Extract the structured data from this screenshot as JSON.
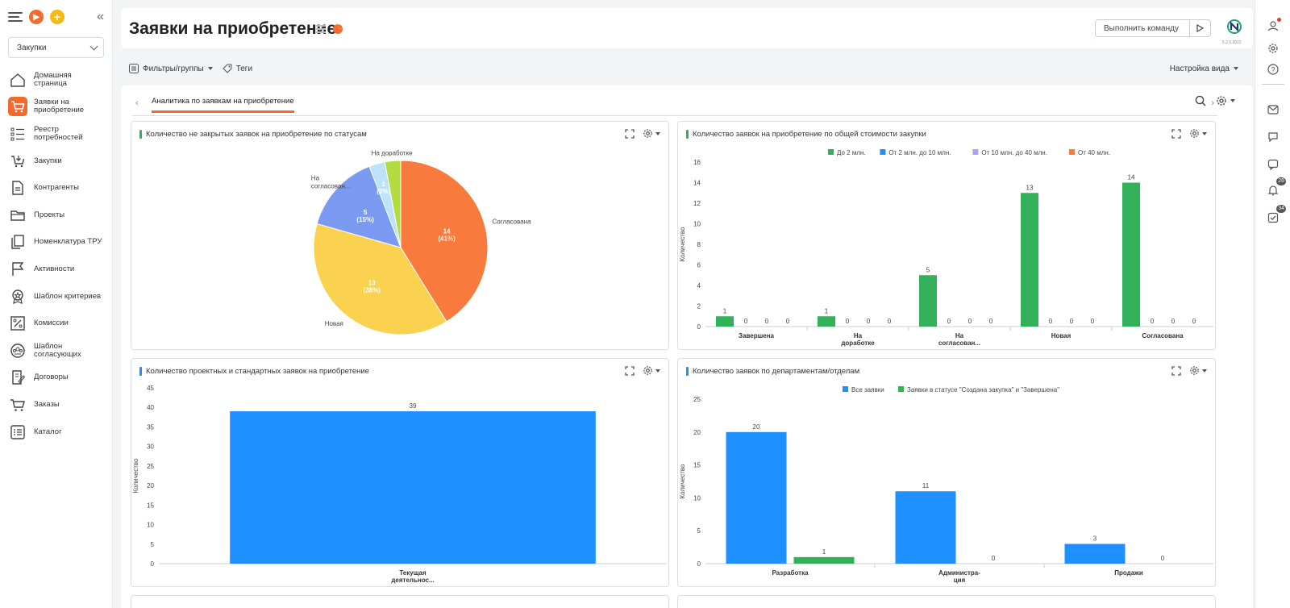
{
  "sidebar": {
    "module_select": "Закупки",
    "items": [
      {
        "label": "Домашняя страница",
        "line1": "Домашняя",
        "line2": "страница",
        "icon": "home-icon",
        "active": false
      },
      {
        "label": "Заявки на приобретение",
        "line1": "Заявки на",
        "line2": "приобретение",
        "icon": "cart-request-icon",
        "active": true
      },
      {
        "label": "Реестр потребностей",
        "line1": "Реестр",
        "line2": "потребностей",
        "icon": "list-icon",
        "active": false
      },
      {
        "label": "Закупки",
        "line1": "Закупки",
        "line2": "",
        "icon": "cart-down-icon",
        "active": false
      },
      {
        "label": "Контрагенты",
        "line1": "Контрагенты",
        "line2": "",
        "icon": "document-icon",
        "active": false
      },
      {
        "label": "Проекты",
        "line1": "Проекты",
        "line2": "",
        "icon": "folder-icon",
        "active": false
      },
      {
        "label": "Номенклатура ТРУ",
        "line1": "Номенклатура ТРУ",
        "line2": "",
        "icon": "copy-icon",
        "active": false
      },
      {
        "label": "Активности",
        "line1": "Активности",
        "line2": "",
        "icon": "flag-icon",
        "active": false
      },
      {
        "label": "Шаблон критериев",
        "line1": "Шаблон критериев",
        "line2": "",
        "icon": "star-badge-icon",
        "active": false
      },
      {
        "label": "Комиссии",
        "line1": "Комиссии",
        "line2": "",
        "icon": "percent-icon",
        "active": false
      },
      {
        "label": "Шаблон согласующих",
        "line1": "Шаблон",
        "line2": "согласующих",
        "icon": "group-icon",
        "active": false
      },
      {
        "label": "Договоры",
        "line1": "Договоры",
        "line2": "",
        "icon": "contract-icon",
        "active": false
      },
      {
        "label": "Заказы",
        "line1": "Заказы",
        "line2": "",
        "icon": "cart-icon",
        "active": false
      },
      {
        "label": "Каталог",
        "line1": "Каталог",
        "line2": "",
        "icon": "catalog-icon",
        "active": false
      }
    ]
  },
  "header": {
    "title": "Заявки на приобретение",
    "command_placeholder": "Выполнить команду",
    "version": "5.2.0.2022"
  },
  "toolbar": {
    "filters_label": "Фильтры/группы",
    "tags_label": "Теги",
    "view_settings_label": "Настройка вида"
  },
  "tabs": {
    "active_tab": "Аналитика по заявкам на приобретение"
  },
  "rail": {
    "notifications_count": "26",
    "tasks_count": "34"
  },
  "colors": {
    "accent": "#f26a2e",
    "green": "#33b15a",
    "blue": "#1e90ff",
    "lavender": "#a9a4ef",
    "orange": "#f87a3d"
  },
  "chart_data": [
    {
      "type": "pie",
      "title": "Количество не закрытых заявок на приобретение по статусам",
      "slices": [
        {
          "label": "Согласована",
          "value": 14,
          "value_label": "14",
          "pct_label": "(41%)",
          "color": "#f87a3d"
        },
        {
          "label": "Новая",
          "value": 13,
          "value_label": "13",
          "pct_label": "(38%)",
          "color": "#fbd150"
        },
        {
          "label": "На согласован...",
          "value": 5,
          "value_label": "5",
          "pct_label": "(15%)",
          "color": "#7b9bf2"
        },
        {
          "label": "",
          "value": 1,
          "value_label": "1",
          "pct_label": "(3%)",
          "color": "#bde3fb"
        },
        {
          "label": "На доработке",
          "value": 1,
          "value_label": "",
          "pct_label": "",
          "color": "#b3dc40"
        }
      ]
    },
    {
      "type": "bar",
      "title": "Количество заявок на приобретение по общей стоимости закупки",
      "ylabel": "Количество",
      "ylim": [
        0,
        16
      ],
      "yticks": [
        "0",
        "2",
        "4",
        "6",
        "8",
        "10",
        "12",
        "14",
        "16"
      ],
      "legend_position": "top",
      "categories": [
        "Завершена",
        "На доработке",
        "На согласован...",
        "Новая",
        "Согласована"
      ],
      "series": [
        {
          "name": "До 2 млн.",
          "color": "#33b15a",
          "values": [
            1,
            1,
            5,
            13,
            14
          ]
        },
        {
          "name": "От 2 млн. до 10 млн.",
          "color": "#1e90ff",
          "values": [
            0,
            0,
            0,
            0,
            0
          ]
        },
        {
          "name": "От 10 млн. до 40 млн.",
          "color": "#a9a4ef",
          "values": [
            0,
            0,
            0,
            0,
            0
          ]
        },
        {
          "name": "От 40 млн.",
          "color": "#f87a3d",
          "values": [
            0,
            0,
            0,
            0,
            0
          ]
        }
      ]
    },
    {
      "type": "bar",
      "title": "Количество проектных и стандартных заявок на приобретение",
      "ylabel": "Количество",
      "ylim": [
        0,
        45
      ],
      "yticks": [
        "0",
        "5",
        "10",
        "15",
        "20",
        "25",
        "30",
        "35",
        "40",
        "45"
      ],
      "categories": [
        "Текущая деятельнос..."
      ],
      "series": [
        {
          "name": "",
          "color": "#1e90ff",
          "values": [
            39
          ]
        }
      ]
    },
    {
      "type": "bar",
      "title": "Количество заявок по департаментам/отделам",
      "ylabel": "Количество",
      "ylim": [
        0,
        25
      ],
      "yticks": [
        "0",
        "5",
        "10",
        "15",
        "20",
        "25"
      ],
      "legend_position": "top",
      "categories": [
        "Разработка",
        "Администра-ция",
        "Продажи"
      ],
      "series": [
        {
          "name": "Все заявки",
          "color": "#1e90ff",
          "values": [
            20,
            11,
            3
          ]
        },
        {
          "name": "Заявки в статусе \"Создана закупка\" и \"Завершена\"",
          "color": "#33b15a",
          "values": [
            1,
            0,
            0
          ]
        }
      ]
    }
  ]
}
